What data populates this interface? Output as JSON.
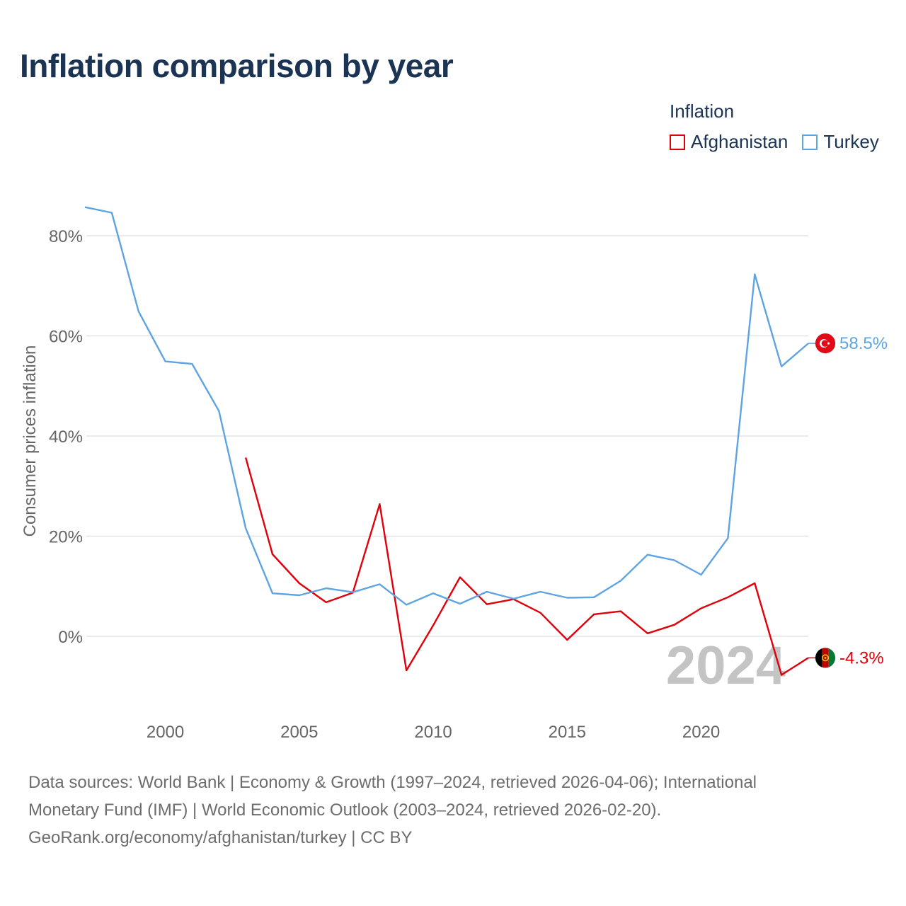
{
  "title": "Inflation comparison by year",
  "legend": {
    "title": "Inflation",
    "items": [
      {
        "label": "Afghanistan",
        "color": "#e0000a"
      },
      {
        "label": "Turkey",
        "color": "#5fa4e2"
      }
    ]
  },
  "chart_data": {
    "type": "line",
    "ylabel": "Consumer prices inflation",
    "xlabel": "",
    "ylim": [
      -12,
      88
    ],
    "xlim": [
      1997,
      2024
    ],
    "y_ticks": [
      0,
      20,
      40,
      60,
      80
    ],
    "y_tick_labels": [
      "0%",
      "20%",
      "40%",
      "60%",
      "80%"
    ],
    "x_ticks": [
      2000,
      2005,
      2010,
      2015,
      2020
    ],
    "x_tick_labels": [
      "2000",
      "2005",
      "2010",
      "2015",
      "2020"
    ],
    "grid": true,
    "current_year_label": "2024",
    "series": [
      {
        "name": "Afghanistan",
        "color": "#e0000a",
        "end_label": "-4.3%",
        "flag_icon": "afghanistan-flag-icon",
        "x": [
          2003,
          2004,
          2005,
          2006,
          2007,
          2008,
          2009,
          2010,
          2011,
          2012,
          2013,
          2014,
          2015,
          2016,
          2017,
          2018,
          2019,
          2020,
          2021,
          2022,
          2023,
          2024
        ],
        "values": [
          35.7,
          16.4,
          10.6,
          6.8,
          8.7,
          26.4,
          -6.8,
          2.2,
          11.8,
          6.4,
          7.4,
          4.7,
          -0.7,
          4.4,
          5.0,
          0.6,
          2.3,
          5.6,
          7.8,
          10.6,
          -7.7,
          -4.3
        ]
      },
      {
        "name": "Turkey",
        "color": "#5fa4e2",
        "end_label": "58.5%",
        "flag_icon": "turkey-flag-icon",
        "x": [
          1997,
          1998,
          1999,
          2000,
          2001,
          2002,
          2003,
          2004,
          2005,
          2006,
          2007,
          2008,
          2009,
          2010,
          2011,
          2012,
          2013,
          2014,
          2015,
          2016,
          2017,
          2018,
          2019,
          2020,
          2021,
          2022,
          2023,
          2024
        ],
        "values": [
          85.7,
          84.6,
          64.9,
          54.9,
          54.4,
          45.0,
          21.6,
          8.6,
          8.2,
          9.6,
          8.8,
          10.4,
          6.3,
          8.6,
          6.5,
          8.9,
          7.5,
          8.9,
          7.7,
          7.8,
          11.1,
          16.3,
          15.2,
          12.3,
          19.6,
          72.3,
          53.9,
          58.5
        ]
      }
    ]
  },
  "footer": {
    "line1": "Data sources: World Bank | Economy & Growth (1997–2024, retrieved 2026-04-06); International",
    "line2": "Monetary Fund (IMF) | World Economic Outlook (2003–2024, retrieved 2026-02-20).",
    "line3": "GeoRank.org/economy/afghanistan/turkey | CC BY"
  }
}
